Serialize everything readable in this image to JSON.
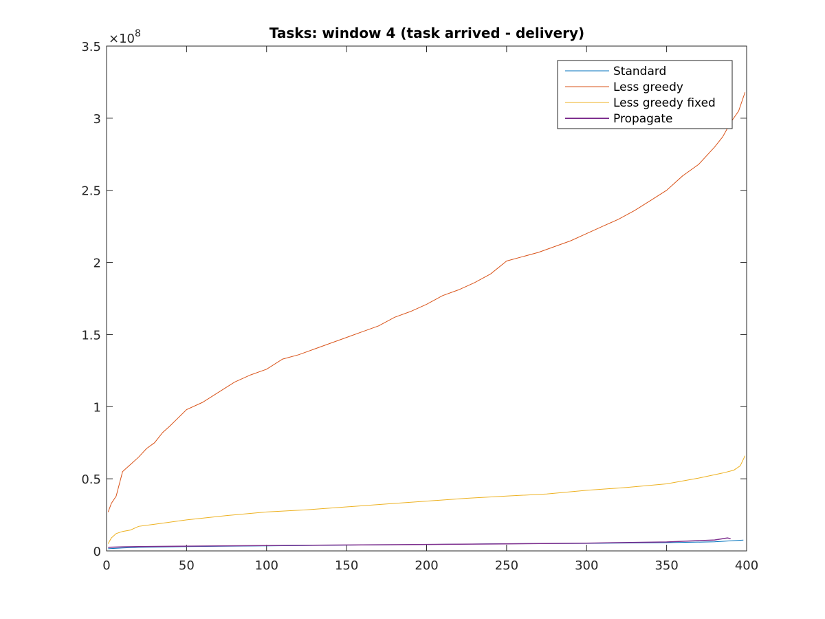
{
  "chart_data": {
    "type": "line",
    "title": "Tasks: window 4 (task arrived - delivery)",
    "xlabel": "",
    "ylabel": "",
    "xlim": [
      0,
      400
    ],
    "ylim": [
      0,
      350000000
    ],
    "y_exponent_base": "×10",
    "y_exponent_power": "8",
    "xticks": [
      0,
      50,
      100,
      150,
      200,
      250,
      300,
      350,
      400
    ],
    "xtick_labels": [
      "0",
      "50",
      "100",
      "150",
      "200",
      "250",
      "300",
      "350",
      "400"
    ],
    "yticks": [
      0,
      50000000,
      100000000,
      150000000,
      200000000,
      250000000,
      300000000,
      350000000
    ],
    "ytick_labels": [
      "0",
      "0.5",
      "1",
      "1.5",
      "2",
      "2.5",
      "3",
      "3.5"
    ],
    "grid": false,
    "legend_position": "top-right",
    "series": [
      {
        "name": "Standard",
        "color": "#0072BD",
        "x": [
          1,
          10,
          20,
          50,
          100,
          150,
          200,
          250,
          300,
          350,
          380,
          398
        ],
        "y": [
          1500000,
          2000000,
          2500000,
          3000000,
          3500000,
          4000000,
          4500000,
          5000000,
          5200000,
          5700000,
          6300000,
          7500000
        ]
      },
      {
        "name": "Less greedy",
        "color": "#D95319",
        "x": [
          1,
          3,
          6,
          10,
          12,
          15,
          20,
          25,
          30,
          35,
          40,
          50,
          60,
          70,
          80,
          90,
          100,
          110,
          120,
          130,
          140,
          150,
          160,
          170,
          180,
          190,
          200,
          210,
          220,
          230,
          240,
          250,
          260,
          270,
          280,
          290,
          300,
          310,
          320,
          330,
          340,
          350,
          360,
          370,
          380,
          385,
          390,
          395,
          399
        ],
        "y": [
          27000000,
          33000000,
          38000000,
          55000000,
          57000000,
          60000000,
          65000000,
          71000000,
          75000000,
          82000000,
          87000000,
          98000000,
          103000000,
          110000000,
          117000000,
          122000000,
          126000000,
          133000000,
          136000000,
          140000000,
          144000000,
          148000000,
          152000000,
          156000000,
          162000000,
          166000000,
          171000000,
          177000000,
          181000000,
          186000000,
          192000000,
          201000000,
          204000000,
          207000000,
          211000000,
          215000000,
          220000000,
          225000000,
          230000000,
          236000000,
          243000000,
          250000000,
          260000000,
          268000000,
          280000000,
          287000000,
          297000000,
          305000000,
          318000000
        ]
      },
      {
        "name": "Less greedy fixed",
        "color": "#EDB120",
        "x": [
          1,
          3,
          6,
          10,
          15,
          20,
          30,
          50,
          75,
          100,
          125,
          150,
          175,
          200,
          225,
          250,
          275,
          300,
          325,
          350,
          370,
          385,
          392,
          396,
          399
        ],
        "y": [
          5000000,
          9000000,
          12000000,
          13500000,
          14500000,
          17000000,
          18500000,
          21500000,
          24500000,
          27000000,
          28500000,
          30500000,
          32500000,
          34500000,
          36500000,
          38000000,
          39500000,
          42000000,
          44000000,
          46500000,
          50500000,
          54000000,
          56000000,
          59000000,
          66000000
        ]
      },
      {
        "name": "Propagate",
        "color": "#7E2F8E",
        "x": [
          1,
          10,
          20,
          50,
          100,
          150,
          200,
          250,
          300,
          350,
          380,
          388,
          390
        ],
        "y": [
          2500000,
          2800000,
          3000000,
          3300000,
          3700000,
          4100000,
          4500000,
          4900000,
          5400000,
          6200000,
          7600000,
          9000000,
          8500000
        ]
      }
    ]
  }
}
